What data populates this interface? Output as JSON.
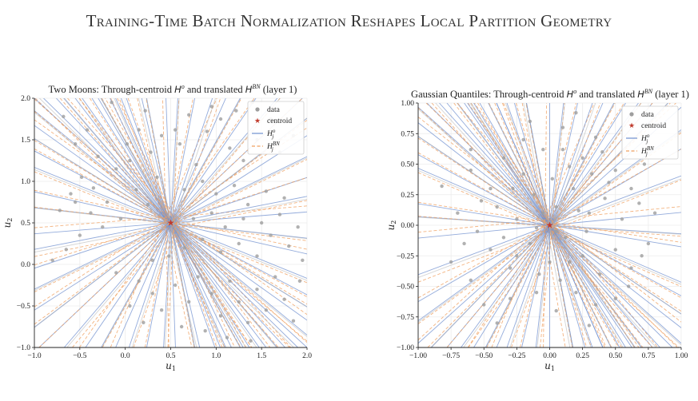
{
  "page_title": "Training-Time Batch Normalization Reshapes Local Partition Geometry",
  "colors": {
    "data": "#9e9e9e",
    "centroid": "#c0392b",
    "ho": "#6f8fcf",
    "hbn": "#f0a060",
    "grid": "#ececec"
  },
  "chart_data": [
    {
      "type": "scatter",
      "title": "Two Moons: Through-centroid H^o and translated H^BN (layer 1)",
      "title_parts": {
        "pre": "Two Moons: Through-centroid ",
        "ho": "H",
        "ho_sup": "o",
        "mid": " and translated ",
        "hbn": "H",
        "hbn_sup": "BN",
        "post": " (layer 1)"
      },
      "xlabel": "u1",
      "ylabel": "u2",
      "xlim": [
        -1.0,
        2.0
      ],
      "ylim": [
        -1.0,
        2.0
      ],
      "xticks": [
        "-1.0",
        "-0.5",
        "0.0",
        "0.5",
        "1.0",
        "1.5",
        "2.0"
      ],
      "yticks": [
        "-1.0",
        "-0.5",
        "0.0",
        "0.5",
        "1.0",
        "1.5",
        "2.0"
      ],
      "grid": true,
      "legend_position": "top-right",
      "legend": [
        "data",
        "centroid",
        "H_j^o",
        "H_j^BN"
      ],
      "centroid": [
        0.5,
        0.5
      ],
      "hyperplane_angles_deg": [
        -78,
        -72,
        -68,
        -66,
        -63,
        -60,
        -57,
        -55,
        -52,
        -50,
        -47,
        -45,
        -42,
        -38,
        -34,
        -30,
        -24,
        -14,
        -7,
        5,
        12,
        20,
        28,
        35,
        40,
        46,
        52,
        58,
        63,
        68,
        73,
        80,
        87,
        92,
        100,
        110,
        118
      ],
      "series": [
        {
          "name": "data",
          "points": [
            [
              -0.68,
              1.78
            ],
            [
              -0.55,
              1.45
            ],
            [
              -0.42,
              1.62
            ],
            [
              -0.3,
              1.3
            ],
            [
              -0.48,
              1.05
            ],
            [
              -0.6,
              0.85
            ],
            [
              -0.72,
              0.65
            ],
            [
              -0.35,
              0.92
            ],
            [
              -0.2,
              0.75
            ],
            [
              -0.1,
              1.15
            ],
            [
              0.02,
              1.45
            ],
            [
              0.15,
              1.62
            ],
            [
              0.22,
              1.85
            ],
            [
              -0.15,
              1.95
            ],
            [
              0.05,
              1.25
            ],
            [
              0.28,
              1.35
            ],
            [
              0.4,
              1.55
            ],
            [
              0.35,
              1.05
            ],
            [
              -0.5,
              0.35
            ],
            [
              -0.65,
              0.18
            ],
            [
              -0.8,
              0.05
            ],
            [
              -0.25,
              0.45
            ],
            [
              -0.05,
              0.55
            ],
            [
              0.12,
              0.9
            ],
            [
              0.25,
              0.72
            ],
            [
              -0.38,
              0.62
            ],
            [
              -0.55,
              0.75
            ],
            [
              0.6,
              1.45
            ],
            [
              0.7,
              1.8
            ],
            [
              0.78,
              1.2
            ],
            [
              0.55,
              1.62
            ],
            [
              0.9,
              1.6
            ],
            [
              0.95,
              1.9
            ],
            [
              1.05,
              1.75
            ],
            [
              1.15,
              1.4
            ],
            [
              1.22,
              1.85
            ],
            [
              1.3,
              1.25
            ],
            [
              1.45,
              1.5
            ],
            [
              1.4,
              1.95
            ],
            [
              1.6,
              1.75
            ],
            [
              1.7,
              1.35
            ],
            [
              1.85,
              1.55
            ],
            [
              0.65,
              0.9
            ],
            [
              0.85,
              1.0
            ],
            [
              1.0,
              0.85
            ],
            [
              1.2,
              0.95
            ],
            [
              1.35,
              0.72
            ],
            [
              1.55,
              0.88
            ],
            [
              1.75,
              0.8
            ],
            [
              0.15,
              -0.2
            ],
            [
              0.3,
              -0.35
            ],
            [
              0.4,
              -0.55
            ],
            [
              0.55,
              -0.25
            ],
            [
              0.7,
              -0.45
            ],
            [
              0.8,
              -0.15
            ],
            [
              0.95,
              -0.35
            ],
            [
              1.05,
              -0.62
            ],
            [
              1.15,
              -0.2
            ],
            [
              1.25,
              -0.45
            ],
            [
              1.35,
              -0.7
            ],
            [
              1.45,
              -0.3
            ],
            [
              1.55,
              -0.55
            ],
            [
              1.65,
              -0.15
            ],
            [
              1.75,
              -0.42
            ],
            [
              1.85,
              -0.68
            ],
            [
              1.92,
              -0.2
            ],
            [
              0.62,
              -0.75
            ],
            [
              0.88,
              -0.8
            ],
            [
              1.12,
              -0.88
            ],
            [
              1.38,
              -0.92
            ],
            [
              0.48,
              0.1
            ],
            [
              0.65,
              0.2
            ],
            [
              0.85,
              0.3
            ],
            [
              1.05,
              0.15
            ],
            [
              1.25,
              0.25
            ],
            [
              1.45,
              0.1
            ],
            [
              1.6,
              0.35
            ],
            [
              1.8,
              0.22
            ],
            [
              1.95,
              0.05
            ],
            [
              0.3,
              0.05
            ],
            [
              0.05,
              -0.5
            ],
            [
              -0.1,
              -0.1
            ],
            [
              0.2,
              -0.7
            ],
            [
              1.1,
              0.45
            ],
            [
              1.3,
              0.55
            ],
            [
              1.5,
              0.5
            ],
            [
              1.7,
              0.6
            ],
            [
              1.9,
              0.45
            ],
            [
              0.75,
              0.55
            ],
            [
              0.95,
              0.62
            ]
          ]
        },
        {
          "name": "centroid",
          "points": [
            [
              0.5,
              0.5
            ]
          ]
        }
      ]
    },
    {
      "type": "scatter",
      "title": "Gaussian Quantiles: Through-centroid H^o and translated H^BN (layer 1)",
      "title_parts": {
        "pre": "Gaussian Quantiles: Through-centroid ",
        "ho": "H",
        "ho_sup": "o",
        "mid": " and translated ",
        "hbn": "H",
        "hbn_sup": "BN",
        "post": " (layer 1)"
      },
      "xlabel": "u1",
      "ylabel": "u2",
      "xlim": [
        -1.0,
        1.0
      ],
      "ylim": [
        -1.0,
        1.0
      ],
      "xticks": [
        "-1.00",
        "-0.75",
        "-0.50",
        "-0.25",
        "0.00",
        "0.25",
        "0.50",
        "0.75",
        "1.00"
      ],
      "yticks": [
        "-1.00",
        "-0.75",
        "-0.50",
        "-0.25",
        "0.00",
        "0.25",
        "0.50",
        "0.75",
        "1.00"
      ],
      "grid": true,
      "legend_position": "top-right",
      "legend": [
        "data",
        "centroid",
        "H_j^o",
        "H_j^BN"
      ],
      "centroid": [
        0.0,
        0.0
      ],
      "hyperplane_angles_deg": [
        -80,
        -75,
        -72,
        -68,
        -65,
        -62,
        -60,
        -57,
        -55,
        -52,
        -50,
        -47,
        -44,
        -40,
        -36,
        -30,
        -25,
        -10,
        -4,
        6,
        22,
        32,
        38,
        44,
        48,
        52,
        56,
        60,
        64,
        68,
        72,
        78,
        84,
        90,
        100,
        112,
        122
      ],
      "series": [
        {
          "name": "data",
          "points": [
            [
              -0.82,
              0.32
            ],
            [
              -0.6,
              0.45
            ],
            [
              -0.45,
              0.3
            ],
            [
              -0.35,
              0.55
            ],
            [
              -0.2,
              0.7
            ],
            [
              -0.05,
              0.62
            ],
            [
              0.1,
              0.8
            ],
            [
              0.25,
              0.55
            ],
            [
              0.35,
              0.72
            ],
            [
              0.5,
              0.45
            ],
            [
              0.62,
              0.3
            ],
            [
              0.72,
              0.5
            ],
            [
              -0.7,
              0.1
            ],
            [
              -0.55,
              -0.05
            ],
            [
              -0.4,
              0.15
            ],
            [
              -0.25,
              0.05
            ],
            [
              -0.12,
              0.25
            ],
            [
              0.05,
              0.15
            ],
            [
              0.18,
              0.3
            ],
            [
              0.3,
              0.1
            ],
            [
              0.42,
              0.22
            ],
            [
              0.55,
              0.05
            ],
            [
              0.68,
              0.18
            ],
            [
              0.8,
              0.1
            ],
            [
              -0.75,
              -0.3
            ],
            [
              -0.6,
              -0.45
            ],
            [
              -0.45,
              -0.2
            ],
            [
              -0.3,
              -0.35
            ],
            [
              -0.15,
              -0.15
            ],
            [
              0.0,
              -0.3
            ],
            [
              0.12,
              -0.1
            ],
            [
              0.25,
              -0.25
            ],
            [
              0.38,
              -0.4
            ],
            [
              0.5,
              -0.2
            ],
            [
              0.62,
              -0.35
            ],
            [
              0.75,
              -0.15
            ],
            [
              -0.5,
              -0.65
            ],
            [
              -0.3,
              -0.6
            ],
            [
              -0.1,
              -0.55
            ],
            [
              0.05,
              -0.7
            ],
            [
              0.2,
              -0.55
            ],
            [
              0.35,
              -0.65
            ],
            [
              0.5,
              -0.6
            ],
            [
              -0.2,
              0.42
            ],
            [
              0.02,
              0.38
            ],
            [
              0.15,
              0.48
            ],
            [
              -0.08,
              -0.4
            ],
            [
              0.08,
              -0.45
            ],
            [
              -0.35,
              -0.1
            ],
            [
              0.28,
              -0.05
            ],
            [
              0.45,
              0.35
            ],
            [
              -0.52,
              0.2
            ],
            [
              -0.65,
              -0.15
            ],
            [
              0.6,
              -0.5
            ],
            [
              0.1,
              0.62
            ],
            [
              -0.15,
              0.85
            ],
            [
              0.2,
              0.92
            ],
            [
              -0.4,
              -0.8
            ],
            [
              0.3,
              -0.82
            ],
            [
              -0.25,
              -0.25
            ],
            [
              0.4,
              0.6
            ],
            [
              0.7,
              -0.25
            ],
            [
              -0.6,
              0.62
            ],
            [
              0.15,
              -0.3
            ],
            [
              -0.05,
              0.1
            ],
            [
              0.05,
              -0.05
            ],
            [
              -0.1,
              -0.02
            ],
            [
              0.22,
              0.12
            ],
            [
              -0.28,
              0.3
            ],
            [
              0.32,
              0.42
            ]
          ]
        },
        {
          "name": "centroid",
          "points": [
            [
              0.0,
              0.0
            ]
          ]
        }
      ]
    }
  ]
}
